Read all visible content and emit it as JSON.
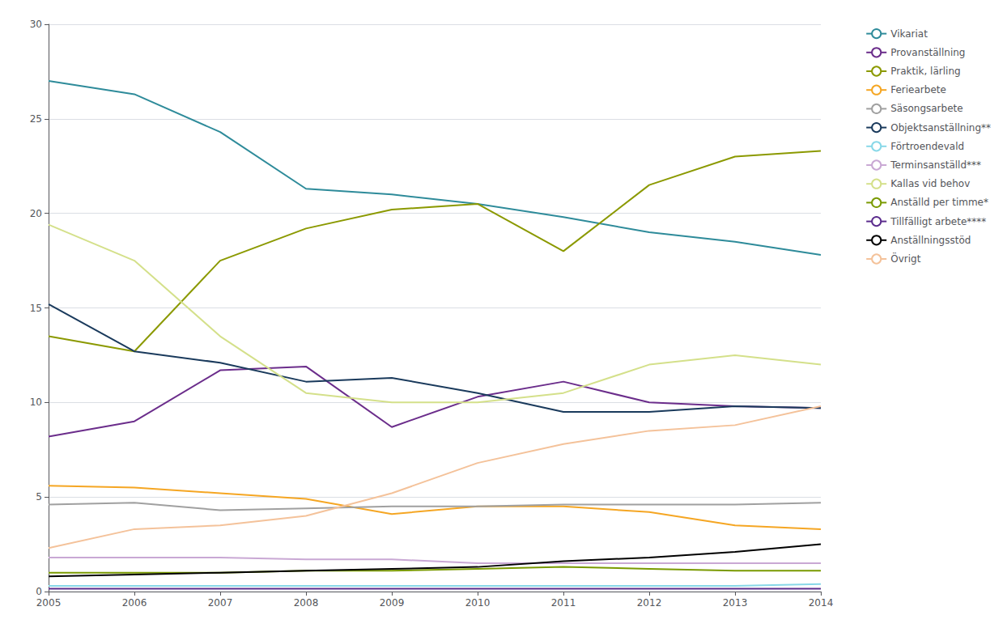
{
  "chart_data": {
    "type": "line",
    "x": [
      2005,
      2006,
      2007,
      2008,
      2009,
      2010,
      2011,
      2012,
      2013,
      2014
    ],
    "xlim": [
      2005,
      2014
    ],
    "xticks": [
      2005,
      2006,
      2007,
      2008,
      2009,
      2010,
      2011,
      2012,
      2013,
      2014
    ],
    "ylim": [
      0,
      30
    ],
    "yticks": [
      0,
      5,
      10,
      15,
      20,
      25,
      30
    ],
    "grid": true,
    "legend": "upper right",
    "series": [
      {
        "name": "Vikariat",
        "color": "#2E8B9A",
        "values": [
          27.0,
          26.3,
          24.3,
          21.3,
          21.0,
          20.5,
          19.8,
          19.0,
          18.5,
          17.8
        ]
      },
      {
        "name": "Provanställning",
        "color": "#6B2D8B",
        "values": [
          8.2,
          9.0,
          11.7,
          11.9,
          8.7,
          10.3,
          11.1,
          10.0,
          9.8,
          9.7
        ]
      },
      {
        "name": "Praktik, lärling",
        "color": "#8B9900",
        "values": [
          13.5,
          12.7,
          17.5,
          19.2,
          20.2,
          20.5,
          18.0,
          21.5,
          23.0,
          23.3
        ]
      },
      {
        "name": "Feriearbete",
        "color": "#F5A623",
        "values": [
          5.6,
          5.5,
          5.2,
          4.9,
          4.1,
          4.5,
          4.5,
          4.2,
          3.5,
          3.3
        ]
      },
      {
        "name": "Säsongsarbete",
        "color": "#A0A0A0",
        "values": [
          4.6,
          4.7,
          4.3,
          4.4,
          4.5,
          4.5,
          4.6,
          4.6,
          4.6,
          4.7
        ]
      },
      {
        "name": "Objektsanställning**",
        "color": "#1A3A5C",
        "values": [
          15.2,
          12.7,
          12.1,
          11.1,
          11.3,
          10.5,
          9.5,
          9.5,
          9.8,
          9.7
        ]
      },
      {
        "name": "Förtroendevald",
        "color": "#88D8E8",
        "values": [
          0.3,
          0.3,
          0.3,
          0.3,
          0.3,
          0.3,
          0.3,
          0.3,
          0.3,
          0.4
        ]
      },
      {
        "name": "Terminsanställd***",
        "color": "#C9A8D4",
        "values": [
          1.8,
          1.8,
          1.8,
          1.7,
          1.7,
          1.5,
          1.5,
          1.5,
          1.5,
          1.5
        ]
      },
      {
        "name": "Kallas vid behov",
        "color": "#D4E08A",
        "values": [
          19.4,
          17.5,
          13.5,
          10.5,
          10.0,
          10.0,
          10.5,
          12.0,
          12.5,
          12.0
        ]
      },
      {
        "name": "Anställd per timme*",
        "color": "#7A9A01",
        "values": [
          1.0,
          1.0,
          1.0,
          1.1,
          1.1,
          1.2,
          1.3,
          1.2,
          1.1,
          1.1
        ]
      },
      {
        "name": "Tillfälligt arbete****",
        "color": "#5B2C8D",
        "values": [
          0.15,
          0.15,
          0.15,
          0.15,
          0.15,
          0.15,
          0.15,
          0.15,
          0.15,
          0.15
        ]
      },
      {
        "name": "Anställningsstöd",
        "color": "#000000",
        "values": [
          0.8,
          0.9,
          1.0,
          1.1,
          1.2,
          1.3,
          1.6,
          1.8,
          2.1,
          2.5
        ]
      },
      {
        "name": "Övrigt",
        "color": "#F4C29A",
        "values": [
          2.3,
          3.3,
          3.5,
          4.0,
          5.2,
          6.8,
          7.8,
          8.5,
          8.8,
          9.8
        ]
      }
    ]
  }
}
